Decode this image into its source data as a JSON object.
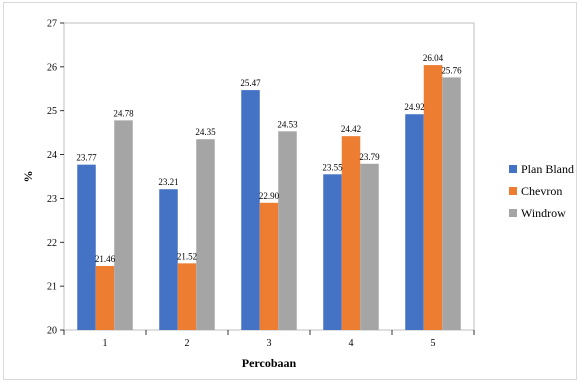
{
  "chart_data": {
    "type": "bar",
    "title": "",
    "xlabel": "Percobaan",
    "ylabel": "%",
    "ylim": [
      20,
      27
    ],
    "yticks": [
      "20",
      "21",
      "22",
      "23",
      "24",
      "25",
      "26",
      "27"
    ],
    "categories": [
      "1",
      "2",
      "3",
      "4",
      "5"
    ],
    "series": [
      {
        "name": "Plan Bland",
        "color": "#4472C4",
        "values": [
          23.77,
          23.21,
          25.47,
          23.55,
          24.92
        ],
        "labels": [
          "23.77",
          "23.21",
          "25.47",
          "23.55",
          "24.92"
        ]
      },
      {
        "name": "Chevron",
        "color": "#ED7D31",
        "values": [
          21.46,
          21.52,
          22.9,
          24.42,
          26.04
        ],
        "labels": [
          "21.46",
          "21.52",
          "22.90",
          "24.42",
          "26.04"
        ]
      },
      {
        "name": "Windrow",
        "color": "#A5A5A5",
        "values": [
          24.78,
          24.35,
          24.53,
          23.79,
          25.76
        ],
        "labels": [
          "24.78",
          "24.35",
          "24.53",
          "23.79",
          "25.76"
        ]
      }
    ],
    "grid": false,
    "legend_position": "right"
  }
}
